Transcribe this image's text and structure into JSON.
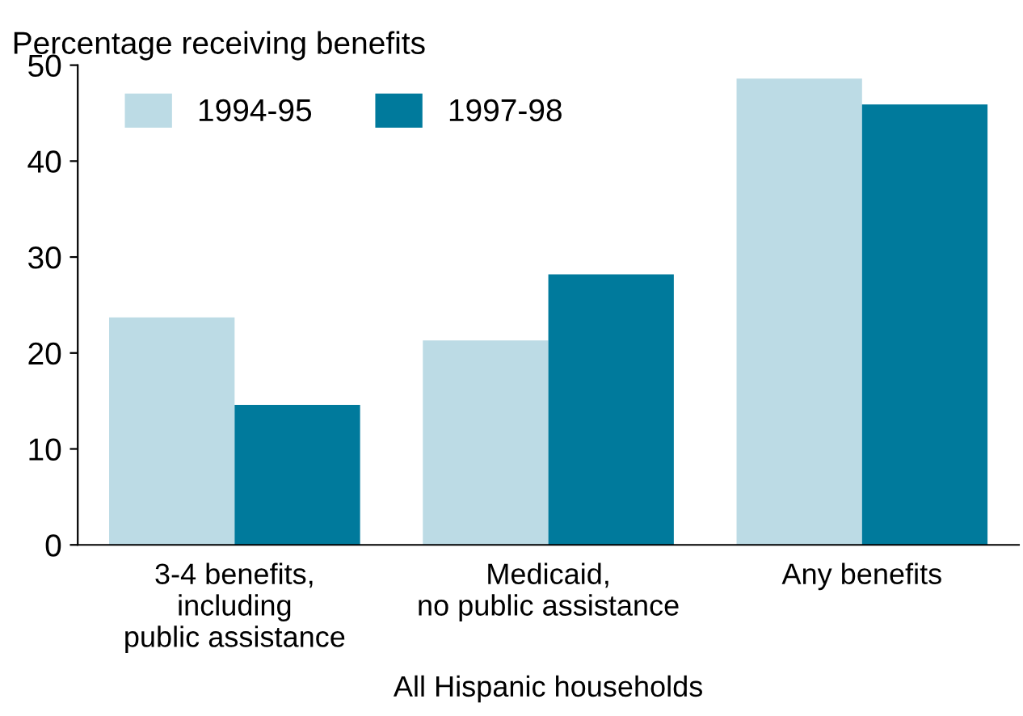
{
  "chart_data": {
    "type": "bar",
    "ylabel": "Percentage receiving benefits",
    "xlabel": "All Hispanic households",
    "categories": [
      "3-4 benefits,\nincluding\npublic assistance",
      "Medicaid,\nno public assistance",
      "Any benefits"
    ],
    "series": [
      {
        "name": "1994-95",
        "color": "#bcdbe5",
        "values": [
          23.7,
          21.3,
          48.6
        ]
      },
      {
        "name": "1997-98",
        "color": "#007a9c",
        "values": [
          14.6,
          28.2,
          45.9
        ]
      }
    ],
    "ylim": [
      0,
      50
    ],
    "yticks": [
      0,
      10,
      20,
      30,
      40,
      50
    ],
    "grid": false,
    "legend": "top left"
  }
}
